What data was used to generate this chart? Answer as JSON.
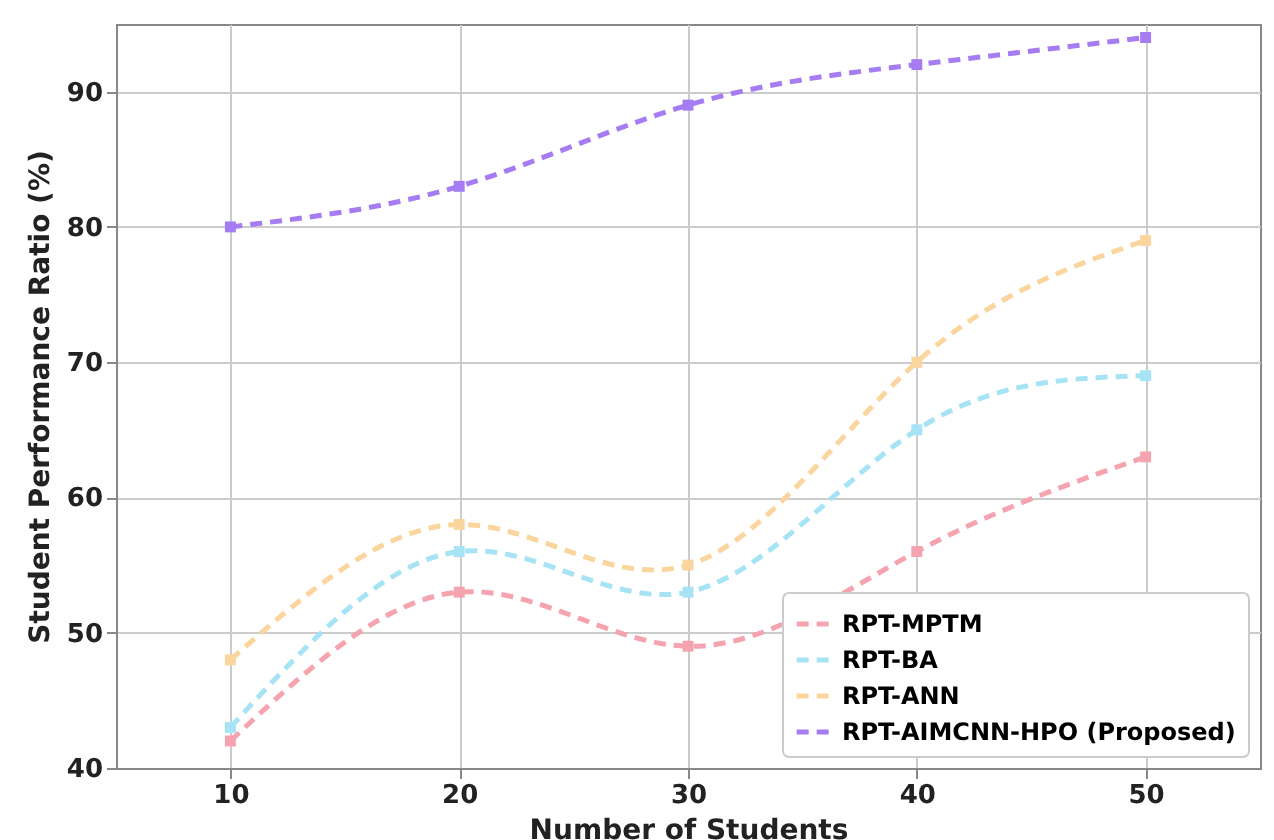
{
  "chart_data": {
    "type": "line",
    "xlabel": "Number of Students",
    "ylabel": "Student Performance Ratio (%)",
    "x": [
      10,
      20,
      30,
      40,
      50
    ],
    "series": [
      {
        "name": "RPT-MPTM",
        "color": "#f5a3ae",
        "values": [
          42,
          53,
          49,
          56,
          63
        ]
      },
      {
        "name": "RPT-BA",
        "color": "#a6e3f5",
        "values": [
          43,
          56,
          53,
          65,
          69
        ]
      },
      {
        "name": "RPT-ANN",
        "color": "#fbd59e",
        "values": [
          48,
          58,
          55,
          70,
          79
        ]
      },
      {
        "name": "RPT-AIMCNN-HPO (Proposed)",
        "color": "#a57cf2",
        "values": [
          80,
          83,
          89,
          92,
          94
        ]
      }
    ],
    "xlim": [
      5,
      55
    ],
    "xticks": [
      10,
      20,
      30,
      40,
      50
    ],
    "ylim": [
      40,
      95
    ],
    "yticks": [
      40,
      50,
      60,
      70,
      80,
      90
    ],
    "grid": true,
    "legend": "bottom right",
    "marker": "square",
    "line_style": "dashed"
  }
}
